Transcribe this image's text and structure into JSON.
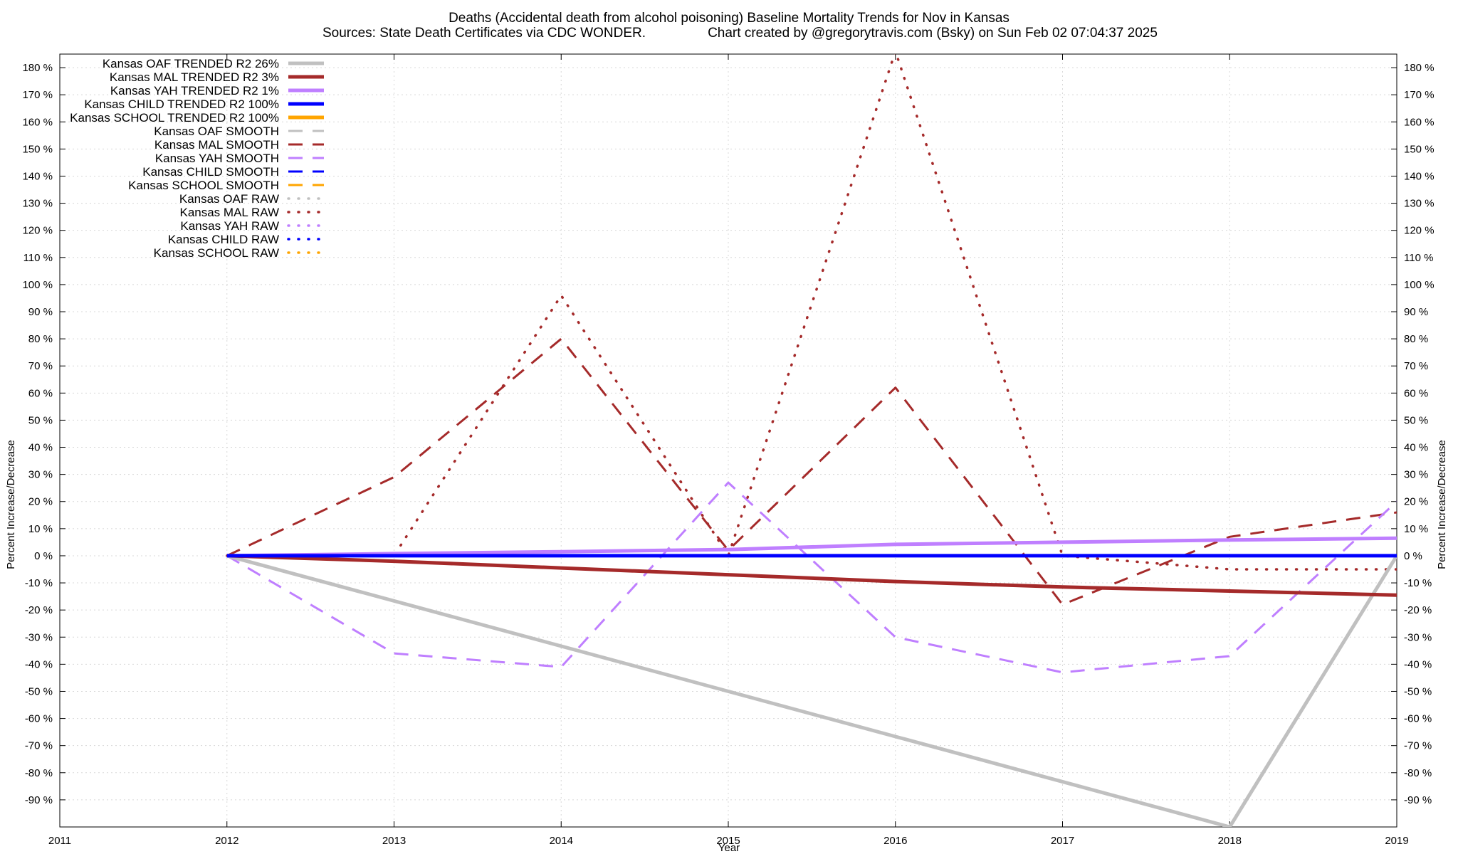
{
  "chart_data": {
    "type": "line",
    "title_line1": "Deaths (Accidental death from alcohol poisoning)  Baseline Mortality Trends for Nov in Kansas",
    "title_line2_left": "Sources: State Death Certificates via CDC WONDER.",
    "title_line2_right": "Chart created by @gregorytravis.com (Bsky) on Sun Feb 02 07:04:37 2025",
    "xlabel": "Year",
    "ylabel_left": "Percent Increase/Decrease",
    "ylabel_right": "Percent Increase/Decrease",
    "xlim": [
      2011,
      2019
    ],
    "ylim": [
      -100,
      185
    ],
    "x_ticks": [
      "2011",
      "2012",
      "2013",
      "2014",
      "2015",
      "2016",
      "2017",
      "2018",
      "2019"
    ],
    "y_ticks": [
      {
        "v": 180,
        "label": "180 %"
      },
      {
        "v": 170,
        "label": "170 %"
      },
      {
        "v": 160,
        "label": "160 %"
      },
      {
        "v": 150,
        "label": "150 %"
      },
      {
        "v": 140,
        "label": "140 %"
      },
      {
        "v": 130,
        "label": "130 %"
      },
      {
        "v": 120,
        "label": "120 %"
      },
      {
        "v": 110,
        "label": "110 %"
      },
      {
        "v": 100,
        "label": "100 %"
      },
      {
        "v": 90,
        "label": "90 %"
      },
      {
        "v": 80,
        "label": "80 %"
      },
      {
        "v": 70,
        "label": "70 %"
      },
      {
        "v": 60,
        "label": "60 %"
      },
      {
        "v": 50,
        "label": "50 %"
      },
      {
        "v": 40,
        "label": "40 %"
      },
      {
        "v": 30,
        "label": "30 %"
      },
      {
        "v": 20,
        "label": "20 %"
      },
      {
        "v": 10,
        "label": "10 %"
      },
      {
        "v": 0,
        "label": "0 %"
      },
      {
        "v": -10,
        "label": "-10 %"
      },
      {
        "v": -20,
        "label": "-20 %"
      },
      {
        "v": -30,
        "label": "-30 %"
      },
      {
        "v": -40,
        "label": "-40 %"
      },
      {
        "v": -50,
        "label": "-50 %"
      },
      {
        "v": -60,
        "label": "-60 %"
      },
      {
        "v": -70,
        "label": "-70 %"
      },
      {
        "v": -80,
        "label": "-80 %"
      },
      {
        "v": -90,
        "label": "-90 %"
      }
    ],
    "grid": true,
    "legend_placement": "top-left",
    "series": [
      {
        "name": "Kansas OAF TRENDED R2  26%",
        "style": "solid",
        "color": "#c0c0c0",
        "points": [
          [
            2012,
            0
          ],
          [
            2018,
            -100
          ],
          [
            2019,
            0
          ]
        ]
      },
      {
        "name": "Kansas MAL TRENDED R2   3%",
        "style": "solid",
        "color": "#a52a2a",
        "points": [
          [
            2012,
            0
          ],
          [
            2013,
            -2
          ],
          [
            2014,
            -4.5
          ],
          [
            2015,
            -7
          ],
          [
            2016,
            -9.5
          ],
          [
            2017,
            -11.5
          ],
          [
            2018,
            -13
          ],
          [
            2019,
            -14.5
          ]
        ]
      },
      {
        "name": "Kansas YAH TRENDED R2   1%",
        "style": "solid",
        "color": "#bf7fff",
        "points": [
          [
            2012,
            0
          ],
          [
            2013,
            0.8
          ],
          [
            2014,
            1.5
          ],
          [
            2015,
            2.3
          ],
          [
            2016,
            4.2
          ],
          [
            2017,
            5
          ],
          [
            2018,
            5.8
          ],
          [
            2019,
            6.5
          ]
        ]
      },
      {
        "name": "Kansas CHILD TRENDED R2 100%",
        "style": "solid",
        "color": "#0000ff",
        "points": [
          [
            2012,
            0
          ],
          [
            2019,
            0
          ]
        ]
      },
      {
        "name": "Kansas SCHOOL TRENDED R2 100%",
        "style": "solid",
        "color": "#ffa500",
        "points": []
      },
      {
        "name": "Kansas OAF SMOOTH",
        "style": "dashed",
        "color": "#c0c0c0",
        "points": []
      },
      {
        "name": "Kansas MAL SMOOTH",
        "style": "dashed",
        "color": "#a52a2a",
        "points": [
          [
            2012,
            0
          ],
          [
            2013,
            29
          ],
          [
            2014,
            80
          ],
          [
            2015,
            2
          ],
          [
            2016,
            62
          ],
          [
            2017,
            -18
          ],
          [
            2018,
            7
          ],
          [
            2019,
            16
          ]
        ]
      },
      {
        "name": "Kansas YAH SMOOTH",
        "style": "dashed",
        "color": "#bf7fff",
        "points": [
          [
            2012,
            0
          ],
          [
            2013,
            -36
          ],
          [
            2014,
            -41
          ],
          [
            2015,
            27
          ],
          [
            2016,
            -30
          ],
          [
            2017,
            -43
          ],
          [
            2018,
            -37
          ],
          [
            2019,
            20
          ]
        ]
      },
      {
        "name": "Kansas CHILD SMOOTH",
        "style": "dashed",
        "color": "#0000ff",
        "points": []
      },
      {
        "name": "Kansas SCHOOL SMOOTH",
        "style": "dashed",
        "color": "#ffa500",
        "points": []
      },
      {
        "name": "Kansas OAF RAW",
        "style": "dotted",
        "color": "#c0c0c0",
        "points": []
      },
      {
        "name": "Kansas MAL RAW",
        "style": "dotted",
        "color": "#a52a2a",
        "points": [
          [
            2012,
            0
          ],
          [
            2013,
            0
          ],
          [
            2014,
            96
          ],
          [
            2015,
            0
          ],
          [
            2016,
            186
          ],
          [
            2017,
            0
          ],
          [
            2018,
            -5
          ],
          [
            2019,
            -5
          ]
        ]
      },
      {
        "name": "Kansas YAH RAW",
        "style": "dotted",
        "color": "#bf7fff",
        "points": []
      },
      {
        "name": "Kansas CHILD RAW",
        "style": "dotted",
        "color": "#0000ff",
        "points": []
      },
      {
        "name": "Kansas SCHOOL RAW",
        "style": "dotted",
        "color": "#ffa500",
        "points": []
      }
    ]
  }
}
